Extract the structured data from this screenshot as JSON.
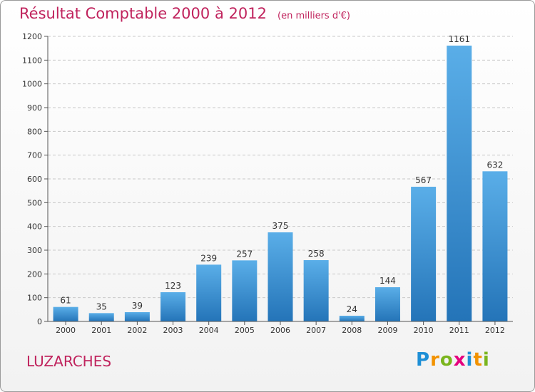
{
  "header": {
    "title": "Résultat Comptable 2000 à 2012",
    "unit": "(en milliers d'€)"
  },
  "place": "LUZARCHES",
  "logo": {
    "letters": [
      "P",
      "r",
      "o",
      "x",
      "i",
      "t",
      "i"
    ],
    "colors": [
      "#1e8fd6",
      "#f29200",
      "#7ab51d",
      "#e5007e",
      "#1e8fd6",
      "#f29200",
      "#7ab51d"
    ]
  },
  "chart_data": {
    "type": "bar",
    "categories": [
      "2000",
      "2001",
      "2002",
      "2003",
      "2004",
      "2005",
      "2006",
      "2007",
      "2008",
      "2009",
      "2010",
      "2011",
      "2012"
    ],
    "values": [
      61,
      35,
      39,
      123,
      239,
      257,
      375,
      258,
      24,
      144,
      567,
      1161,
      632
    ],
    "title": "Résultat Comptable 2000 à 2012",
    "subtitle": "(en milliers d'€)",
    "ylim": [
      0,
      1200
    ],
    "yticks": [
      0,
      100,
      200,
      300,
      400,
      500,
      600,
      700,
      800,
      900,
      1000,
      1100,
      1200
    ],
    "grid": true,
    "bar_color": "#3d93d6"
  }
}
